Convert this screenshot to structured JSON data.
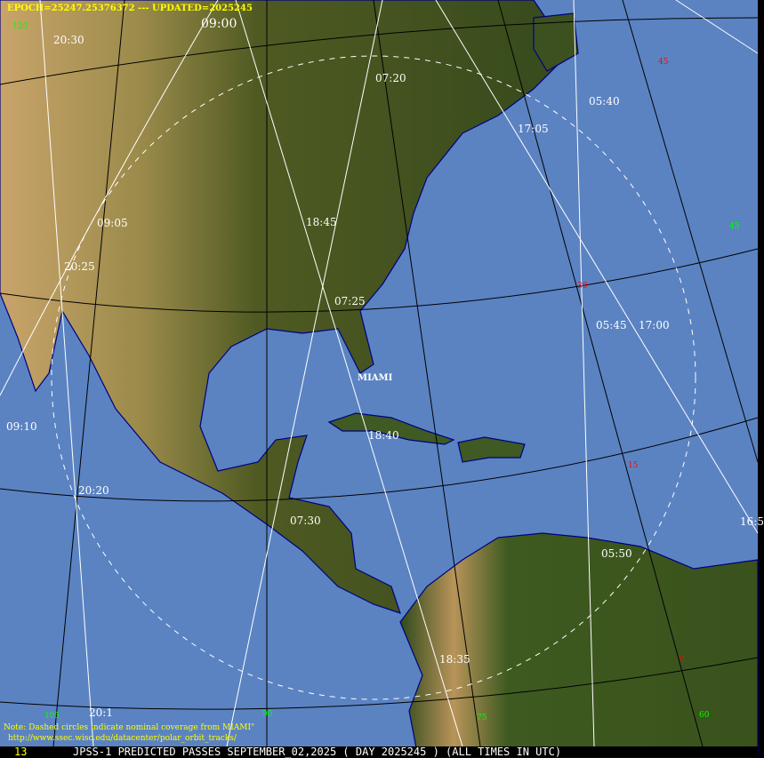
{
  "header": {
    "epoch_text": "EPOCH=25247.25376372 --- UPDATED=2025245"
  },
  "colors": {
    "ocean": "#5b83c2",
    "track": "#ffffff",
    "coastline": "#000080",
    "lat_label": "#ff0000",
    "lon_label": "#00ff00",
    "text_accent": "#ffff00"
  },
  "station": {
    "name": "MIAMI"
  },
  "pass_times": [
    "09:00",
    "20:30",
    "07:20",
    "05:40",
    "17:05",
    "18:45",
    "09:05",
    "20:25",
    "07:25",
    "05:45",
    "17:00",
    "09:10",
    "18:40",
    "20:20",
    "07:30",
    "16:5",
    "05:50",
    "18:35",
    "20:1"
  ],
  "lat_labels": [
    "45",
    "30",
    "15",
    "0"
  ],
  "lon_labels": [
    "120",
    "45",
    "105",
    "90",
    "75",
    "60"
  ],
  "note": {
    "line1": "Note: Dashed circles indicate nominal coverage from MIAMI\"",
    "line2": "http://www.ssec.wisc.edu/datacenter/polar_orbit_tracks/"
  },
  "footer": {
    "frame": "13",
    "title": "JPSS-1 PREDICTED PASSES SEPTEMBER_02,2025 ( DAY 2025245 ) (ALL TIMES IN UTC)"
  }
}
